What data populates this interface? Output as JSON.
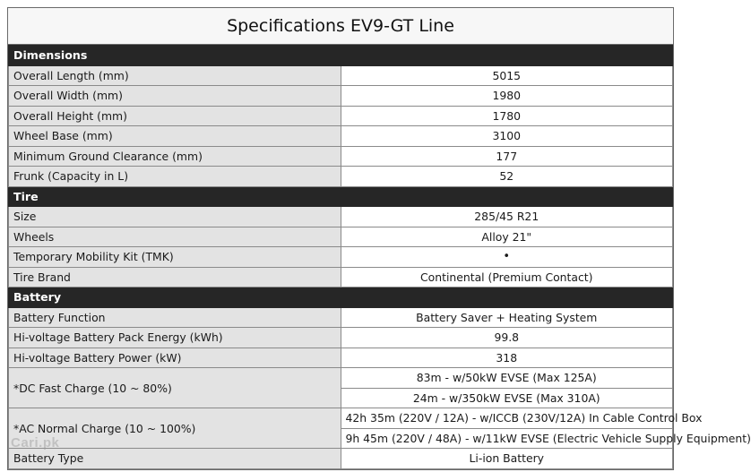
{
  "title": "Specifications EV9-GT Line",
  "sections": {
    "dimensions": {
      "header": "Dimensions",
      "rows": [
        {
          "label": "Overall Length (mm)",
          "value": "5015"
        },
        {
          "label": "Overall Width (mm)",
          "value": "1980"
        },
        {
          "label": "Overall Height (mm)",
          "value": "1780"
        },
        {
          "label": "Wheel Base (mm)",
          "value": "3100"
        },
        {
          "label": "Minimum Ground Clearance (mm)",
          "value": "177"
        },
        {
          "label": "Frunk (Capacity in L)",
          "value": "52"
        }
      ]
    },
    "tire": {
      "header": "Tire",
      "rows": [
        {
          "label": "Size",
          "value": "285/45 R21"
        },
        {
          "label": "Wheels",
          "value": "Alloy 21\""
        },
        {
          "label": "Temporary Mobility Kit (TMK)",
          "value": "•"
        },
        {
          "label": "Tire Brand",
          "value": "Continental (Premium Contact)"
        }
      ]
    },
    "battery": {
      "header": "Battery",
      "rows": [
        {
          "label": "Battery Function",
          "value": "Battery Saver + Heating System"
        },
        {
          "label": "Hi-voltage Battery Pack Energy (kWh)",
          "value": "99.8"
        },
        {
          "label": "Hi-voltage Battery Power (kW)",
          "value": "318"
        }
      ],
      "dc_fast": {
        "label": "*DC Fast Charge (10 ~ 80%)",
        "values": [
          "83m - w/50kW EVSE (Max 125A)",
          "24m - w/350kW EVSE (Max 310A)"
        ]
      },
      "ac_normal": {
        "label": "*AC Normal Charge (10 ~ 100%)",
        "values": [
          "42h 35m (220V / 12A) - w/ICCB (230V/12A) In Cable Control Box",
          "9h 45m (220V / 48A) - w/11kW EVSE (Electric Vehicle Supply Equipment)"
        ]
      },
      "type": {
        "label": "Battery Type",
        "value": "Li-ion Battery"
      }
    }
  },
  "watermark": "Cari.pk",
  "colors": {
    "section_bg": "#262626",
    "label_bg": "#e3e3e3",
    "title_bg": "#f7f7f7"
  }
}
